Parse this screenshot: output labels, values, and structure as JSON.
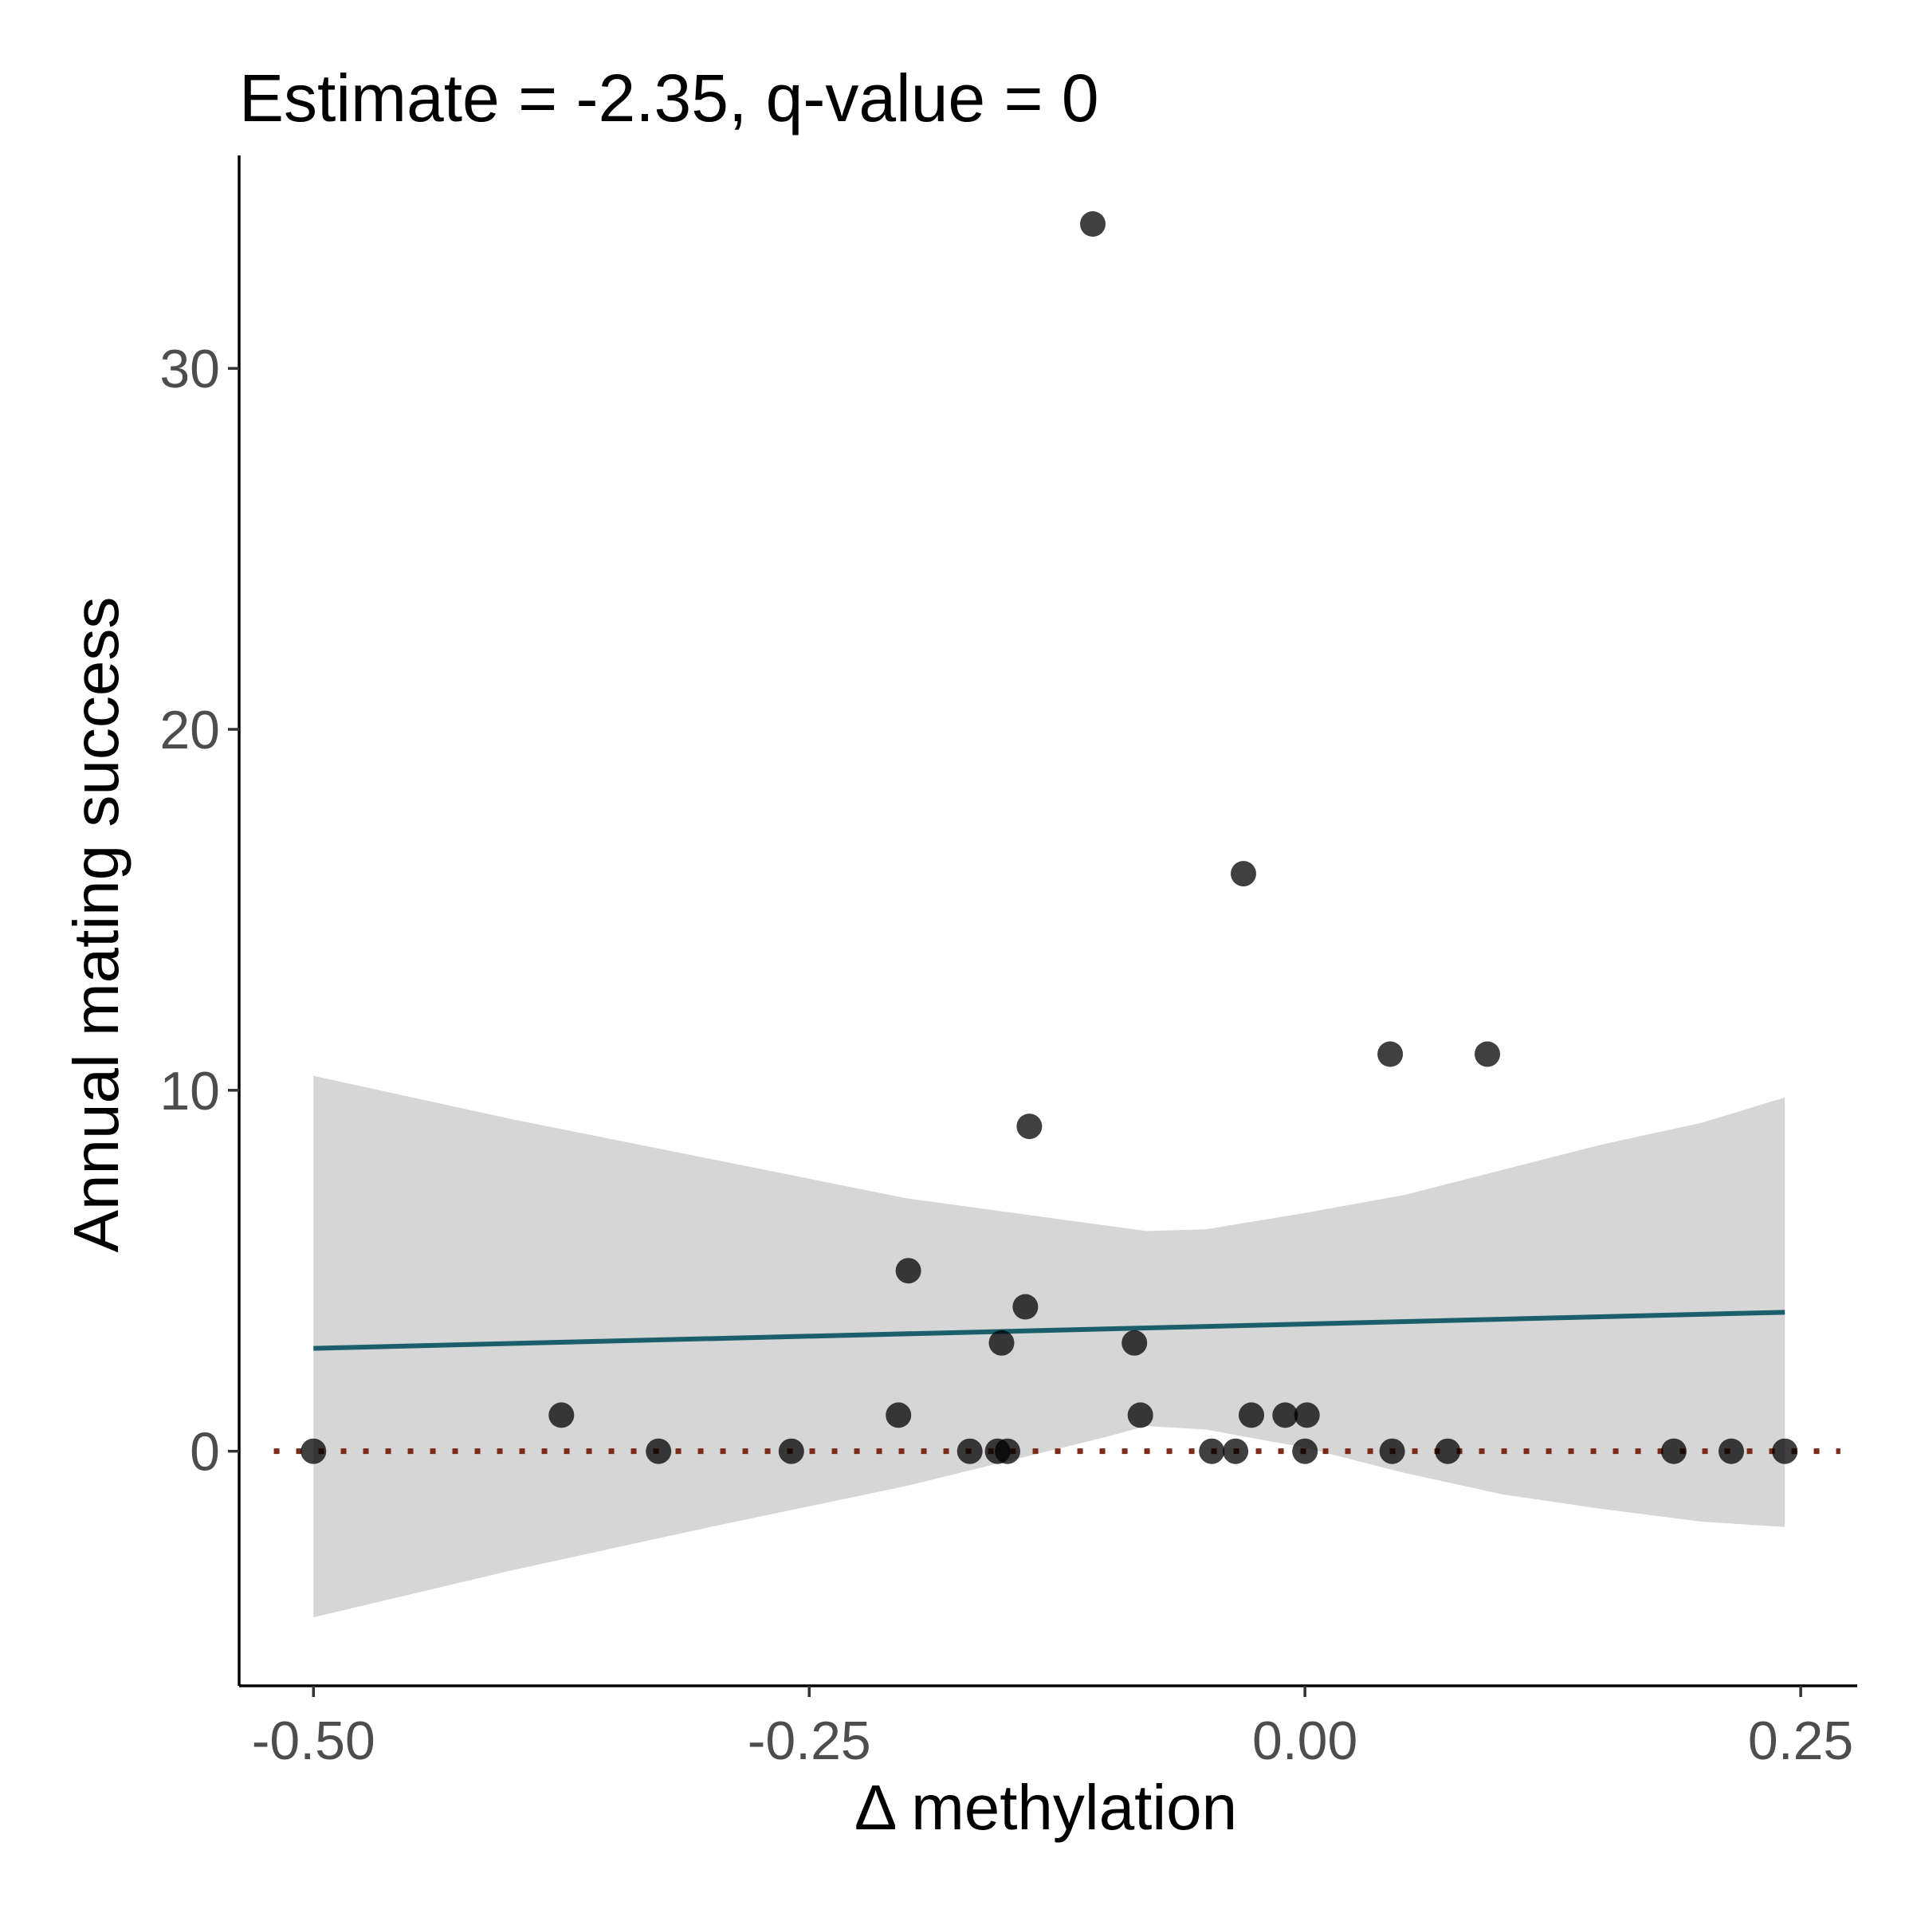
{
  "chart_data": {
    "type": "scatter",
    "title": "Estimate = -2.35, q-value = 0",
    "xlabel": "Δ methylation",
    "ylabel": "Annual mating success",
    "xlim": [
      -0.5375,
      0.2785
    ],
    "ylim": [
      -6.5,
      35.9
    ],
    "x_ticks": [
      -0.5,
      -0.25,
      0.0,
      0.25
    ],
    "x_tick_labels": [
      "-0.50",
      "-0.25",
      "0.00",
      "0.25"
    ],
    "y_ticks": [
      0,
      10,
      20,
      30
    ],
    "y_tick_labels": [
      "0",
      "10",
      "20",
      "30"
    ],
    "grid": false,
    "legend": "none",
    "points": [
      {
        "x": -0.5,
        "y": 0
      },
      {
        "x": -0.375,
        "y": 1
      },
      {
        "x": -0.326,
        "y": 0
      },
      {
        "x": -0.259,
        "y": 0
      },
      {
        "x": -0.205,
        "y": 1
      },
      {
        "x": -0.2,
        "y": 5
      },
      {
        "x": -0.169,
        "y": 0
      },
      {
        "x": -0.155,
        "y": 0
      },
      {
        "x": -0.153,
        "y": 3
      },
      {
        "x": -0.15,
        "y": 0
      },
      {
        "x": -0.141,
        "y": 4
      },
      {
        "x": -0.139,
        "y": 9
      },
      {
        "x": -0.107,
        "y": 34
      },
      {
        "x": -0.086,
        "y": 3
      },
      {
        "x": -0.083,
        "y": 1
      },
      {
        "x": -0.047,
        "y": 0
      },
      {
        "x": -0.035,
        "y": 0
      },
      {
        "x": -0.031,
        "y": 16
      },
      {
        "x": -0.027,
        "y": 1
      },
      {
        "x": -0.01,
        "y": 1
      },
      {
        "x": 0.0,
        "y": 0
      },
      {
        "x": 0.001,
        "y": 1
      },
      {
        "x": 0.043,
        "y": 11
      },
      {
        "x": 0.044,
        "y": 0
      },
      {
        "x": 0.072,
        "y": 0
      },
      {
        "x": 0.092,
        "y": 11
      },
      {
        "x": 0.186,
        "y": 0
      },
      {
        "x": 0.215,
        "y": 0
      },
      {
        "x": 0.242,
        "y": 0
      }
    ],
    "regression_line": {
      "x": [
        -0.5,
        0.242
      ],
      "y": [
        2.85,
        3.85
      ],
      "color": "#1a5f6b"
    },
    "confidence_band": {
      "color": "#d6d6d6",
      "x": [
        -0.5,
        -0.4,
        -0.3,
        -0.2,
        -0.1,
        -0.08,
        -0.05,
        0.0,
        0.05,
        0.1,
        0.15,
        0.2,
        0.242
      ],
      "upper": [
        10.4,
        9.2,
        8.1,
        7.0,
        6.25,
        6.1,
        6.15,
        6.6,
        7.1,
        7.8,
        8.5,
        9.1,
        9.8
      ],
      "lower": [
        -4.6,
        -3.3,
        -2.1,
        -0.95,
        0.4,
        0.7,
        0.6,
        0.1,
        -0.6,
        -1.2,
        -1.6,
        -1.95,
        -2.1
      ]
    },
    "reference_line": {
      "y": 0,
      "style": "dotted",
      "color": "#7a2a17"
    },
    "point_color": "#000000",
    "point_alpha": 0.75
  }
}
